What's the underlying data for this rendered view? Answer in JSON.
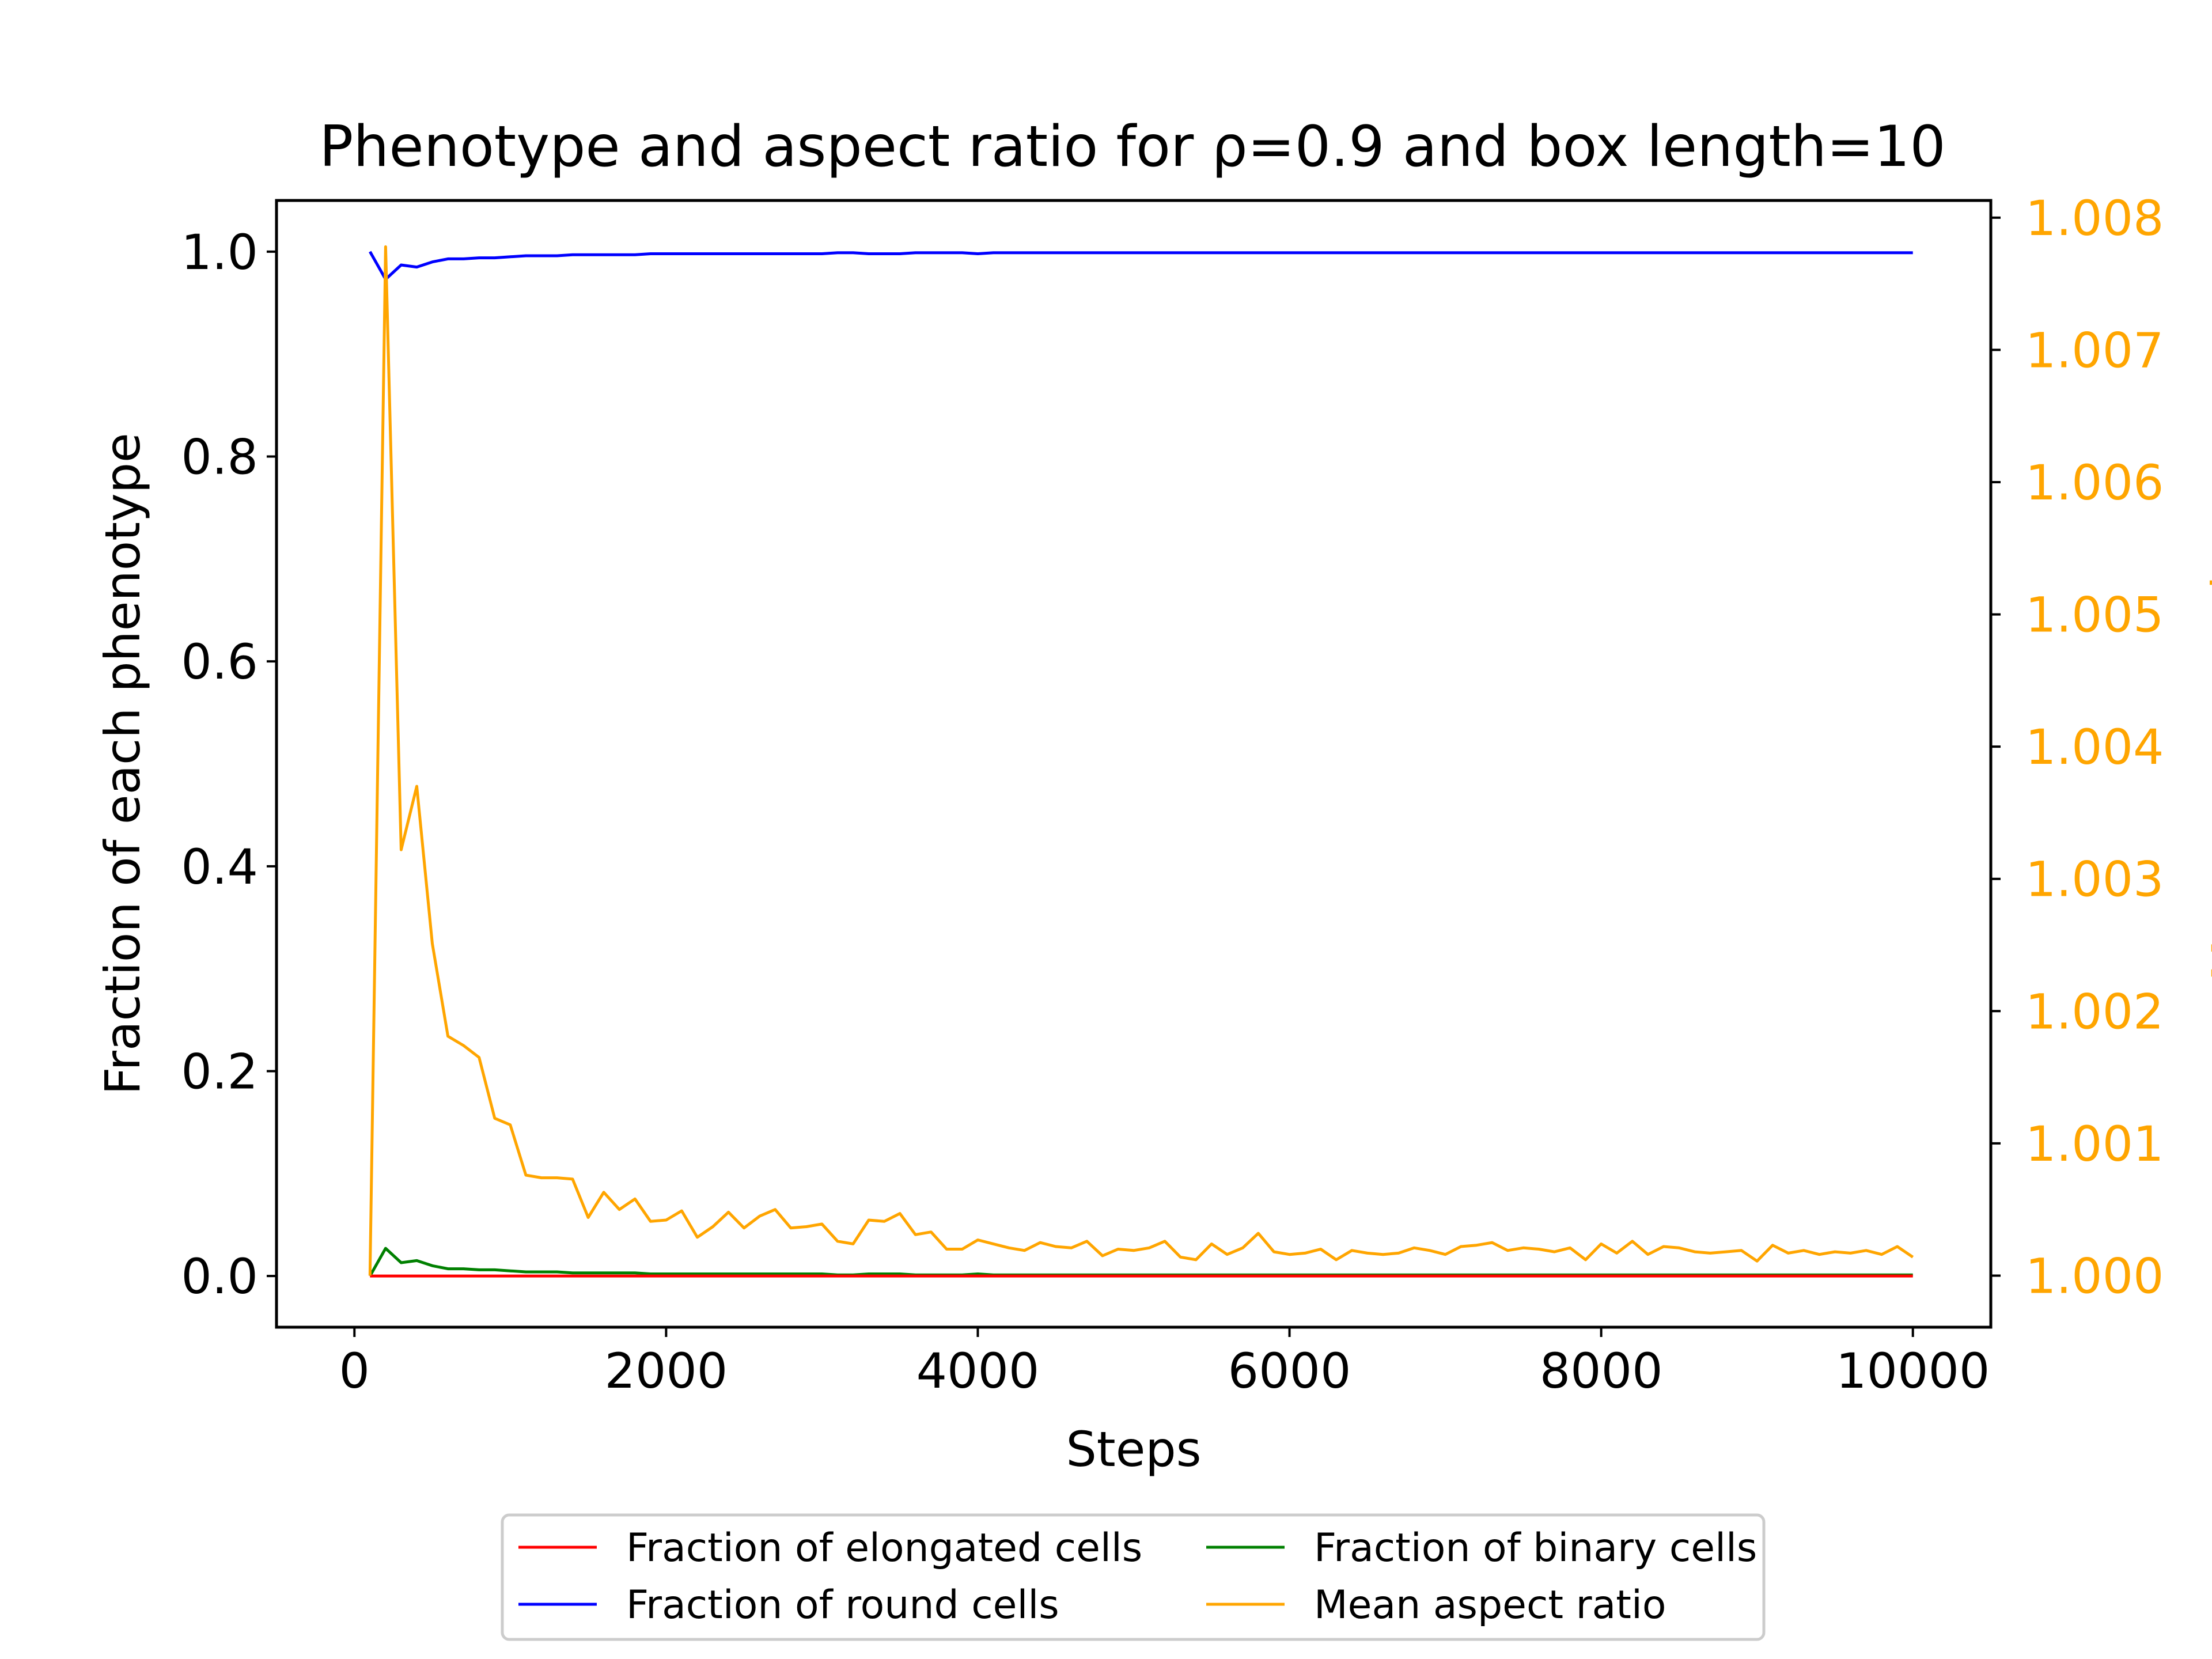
{
  "chart_data": {
    "type": "line",
    "title": "Phenotype and aspect ratio for ρ=0.9 and box length=10",
    "xlabel": "Steps",
    "ylabel": "Fraction of each phenotype",
    "y2label": "Mean aspect ratio",
    "xlim": [
      -500,
      10500
    ],
    "ylim": [
      -0.05,
      1.05
    ],
    "y2lim": [
      0.99961,
      1.00813
    ],
    "xticks": [
      "0",
      "2000",
      "4000",
      "6000",
      "8000",
      "10000"
    ],
    "yticks": [
      "0.0",
      "0.2",
      "0.4",
      "0.6",
      "0.8",
      "1.0"
    ],
    "y2ticks": [
      "1.000",
      "1.001",
      "1.002",
      "1.003",
      "1.004",
      "1.005",
      "1.006",
      "1.007",
      "1.008"
    ],
    "legend_position": "below plot",
    "colors": {
      "elongated": "#ff0000",
      "round": "#0000ff",
      "binary": "#008000",
      "aspect": "#ffa500"
    },
    "x": [
      100,
      200,
      300,
      400,
      500,
      600,
      700,
      800,
      900,
      1000,
      1100,
      1200,
      1300,
      1400,
      1500,
      1600,
      1700,
      1800,
      1900,
      2000,
      2100,
      2200,
      2300,
      2400,
      2500,
      2600,
      2700,
      2800,
      2900,
      3000,
      3100,
      3200,
      3300,
      3400,
      3500,
      3600,
      3700,
      3800,
      3900,
      4000,
      4100,
      4200,
      4300,
      4400,
      4500,
      4600,
      4700,
      4800,
      4900,
      5000,
      5100,
      5200,
      5300,
      5400,
      5500,
      5600,
      5700,
      5800,
      5900,
      6000,
      6100,
      6200,
      6300,
      6400,
      6500,
      6600,
      6700,
      6800,
      6900,
      7000,
      7100,
      7200,
      7300,
      7400,
      7500,
      7600,
      7700,
      7800,
      7900,
      8000,
      8100,
      8200,
      8300,
      8400,
      8500,
      8600,
      8700,
      8800,
      8900,
      9000,
      9100,
      9200,
      9300,
      9400,
      9500,
      9600,
      9700,
      9800,
      9900,
      10000
    ],
    "series": [
      {
        "name": "Fraction of elongated cells",
        "axis": "left",
        "color": "#ff0000",
        "values": [
          0,
          0,
          0,
          0,
          0,
          0,
          0,
          0,
          0,
          0,
          0,
          0,
          0,
          0,
          0,
          0,
          0,
          0,
          0,
          0,
          0,
          0,
          0,
          0,
          0,
          0,
          0,
          0,
          0,
          0,
          0,
          0,
          0,
          0,
          0,
          0,
          0,
          0,
          0,
          0,
          0,
          0,
          0,
          0,
          0,
          0,
          0,
          0,
          0,
          0,
          0,
          0,
          0,
          0,
          0,
          0,
          0,
          0,
          0,
          0,
          0,
          0,
          0,
          0,
          0,
          0,
          0,
          0,
          0,
          0,
          0,
          0,
          0,
          0,
          0,
          0,
          0,
          0,
          0,
          0,
          0,
          0,
          0,
          0,
          0,
          0,
          0,
          0,
          0,
          0,
          0,
          0,
          0,
          0,
          0,
          0,
          0,
          0,
          0,
          0
        ]
      },
      {
        "name": "Fraction of round cells",
        "axis": "left",
        "color": "#0000ff",
        "values": [
          1.0,
          0.973,
          0.987,
          0.985,
          0.99,
          0.993,
          0.993,
          0.994,
          0.994,
          0.995,
          0.996,
          0.996,
          0.996,
          0.997,
          0.997,
          0.997,
          0.997,
          0.997,
          0.998,
          0.998,
          0.998,
          0.998,
          0.998,
          0.998,
          0.998,
          0.998,
          0.998,
          0.998,
          0.998,
          0.998,
          0.999,
          0.999,
          0.998,
          0.998,
          0.998,
          0.999,
          0.999,
          0.999,
          0.999,
          0.998,
          0.999,
          0.999,
          0.999,
          0.999,
          0.999,
          0.999,
          0.999,
          0.999,
          0.999,
          0.999,
          0.999,
          0.999,
          0.999,
          0.999,
          0.999,
          0.999,
          0.999,
          0.999,
          0.999,
          0.999,
          0.999,
          0.999,
          0.999,
          0.999,
          0.999,
          0.999,
          0.999,
          0.999,
          0.999,
          0.999,
          0.999,
          0.999,
          0.999,
          0.999,
          0.999,
          0.999,
          0.999,
          0.999,
          0.999,
          0.999,
          0.999,
          0.999,
          0.999,
          0.999,
          0.999,
          0.999,
          0.999,
          0.999,
          0.999,
          0.999,
          0.999,
          0.999,
          0.999,
          0.999,
          0.999,
          0.999,
          0.999,
          0.999,
          0.999,
          0.999
        ]
      },
      {
        "name": "Fraction of binary cells",
        "axis": "left",
        "color": "#008000",
        "values": [
          0.0,
          0.027,
          0.013,
          0.015,
          0.01,
          0.007,
          0.007,
          0.006,
          0.006,
          0.005,
          0.004,
          0.004,
          0.004,
          0.003,
          0.003,
          0.003,
          0.003,
          0.003,
          0.002,
          0.002,
          0.002,
          0.002,
          0.002,
          0.002,
          0.002,
          0.002,
          0.002,
          0.002,
          0.002,
          0.002,
          0.001,
          0.001,
          0.002,
          0.002,
          0.002,
          0.001,
          0.001,
          0.001,
          0.001,
          0.002,
          0.001,
          0.001,
          0.001,
          0.001,
          0.001,
          0.001,
          0.001,
          0.001,
          0.001,
          0.001,
          0.001,
          0.001,
          0.001,
          0.001,
          0.001,
          0.001,
          0.001,
          0.001,
          0.001,
          0.001,
          0.001,
          0.001,
          0.001,
          0.001,
          0.001,
          0.001,
          0.001,
          0.001,
          0.001,
          0.001,
          0.001,
          0.001,
          0.001,
          0.001,
          0.001,
          0.001,
          0.001,
          0.001,
          0.001,
          0.001,
          0.001,
          0.001,
          0.001,
          0.001,
          0.001,
          0.001,
          0.001,
          0.001,
          0.001,
          0.001,
          0.001,
          0.001,
          0.001,
          0.001,
          0.001,
          0.001,
          0.001,
          0.001,
          0.001,
          0.001
        ]
      },
      {
        "name": "Mean aspect ratio",
        "axis": "right",
        "color": "#ffa500",
        "values": [
          1.0,
          1.00778,
          1.00322,
          1.0037,
          1.00251,
          1.00181,
          1.00174,
          1.00165,
          1.00119,
          1.00114,
          1.00076,
          1.00074,
          1.00074,
          1.00073,
          1.00044,
          1.00063,
          1.0005,
          1.00058,
          1.00041,
          1.00042,
          1.00049,
          1.00029,
          1.00037,
          1.00048,
          1.00036,
          1.00045,
          1.0005,
          1.00036,
          1.00037,
          1.00039,
          1.00026,
          1.00024,
          1.00042,
          1.00041,
          1.00047,
          1.00031,
          1.00033,
          1.0002,
          1.0002,
          1.00027,
          1.00024,
          1.00021,
          1.00019,
          1.00025,
          1.00022,
          1.00021,
          1.00026,
          1.00015,
          1.0002,
          1.00019,
          1.00021,
          1.00026,
          1.00014,
          1.00012,
          1.00024,
          1.00016,
          1.00021,
          1.00032,
          1.00018,
          1.00016,
          1.00017,
          1.0002,
          1.00012,
          1.00019,
          1.00017,
          1.00016,
          1.00017,
          1.00021,
          1.00019,
          1.00016,
          1.00022,
          1.00023,
          1.00025,
          1.00019,
          1.00021,
          1.0002,
          1.00018,
          1.00021,
          1.00012,
          1.00024,
          1.00017,
          1.00026,
          1.00016,
          1.00022,
          1.00021,
          1.00018,
          1.00017,
          1.00018,
          1.00019,
          1.00011,
          1.00023,
          1.00017,
          1.00019,
          1.00016,
          1.00018,
          1.00017,
          1.00019,
          1.00016,
          1.00022,
          1.00014
        ]
      }
    ]
  }
}
